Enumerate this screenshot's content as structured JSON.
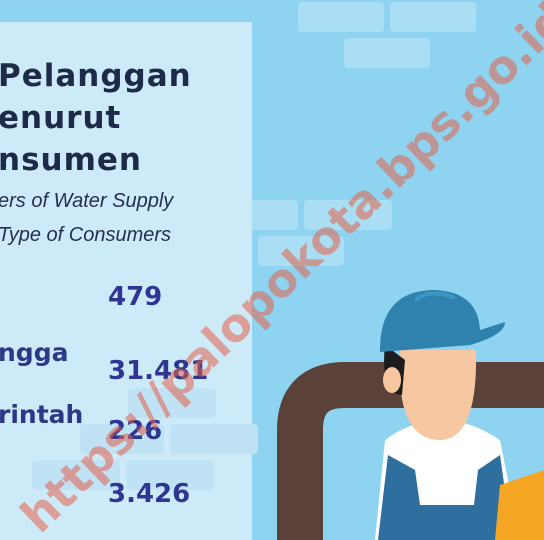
{
  "title": {
    "lines": [
      "Pelanggan",
      "enurut",
      "nsumen"
    ]
  },
  "subtitle": {
    "lines": [
      "ers of Water Supply",
      "Type of Consumers"
    ]
  },
  "labels": [
    "ngga",
    "rintah"
  ],
  "values": [
    "479",
    "31.481",
    "226",
    "3.426"
  ],
  "watermark": "https://palopokota.bps.go.id"
}
